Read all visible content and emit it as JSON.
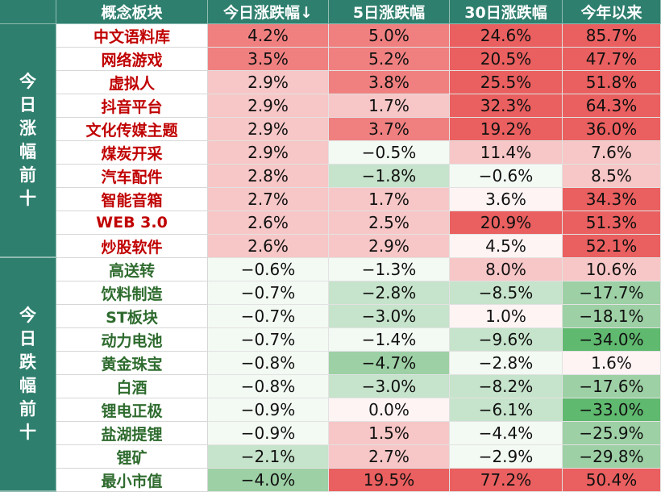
{
  "header": [
    "概念板块",
    "今日涨跌幅↓",
    "5日涨跌幅",
    "30日涨跌幅",
    "今年以来"
  ],
  "groups": [
    {
      "label": "今日涨幅前十",
      "chars": [
        "今",
        "日",
        "涨",
        "幅",
        "前",
        "十"
      ],
      "tone": "up",
      "rows": [
        {
          "name": "中文语料库",
          "values": [
            "4.2%",
            "5.0%",
            "24.6%",
            "85.7%"
          ]
        },
        {
          "name": "网络游戏",
          "values": [
            "3.5%",
            "5.2%",
            "20.5%",
            "47.7%"
          ]
        },
        {
          "name": "虚拟人",
          "values": [
            "2.9%",
            "3.8%",
            "25.5%",
            "51.8%"
          ]
        },
        {
          "name": "抖音平台",
          "values": [
            "2.9%",
            "1.7%",
            "32.3%",
            "64.3%"
          ]
        },
        {
          "name": "文化传媒主题",
          "values": [
            "2.9%",
            "3.7%",
            "19.2%",
            "36.0%"
          ]
        },
        {
          "name": "煤炭开采",
          "values": [
            "2.9%",
            "−0.5%",
            "11.4%",
            "7.6%"
          ]
        },
        {
          "name": "汽车配件",
          "values": [
            "2.8%",
            "−1.8%",
            "−0.6%",
            "8.5%"
          ]
        },
        {
          "name": "智能音箱",
          "values": [
            "2.7%",
            "1.7%",
            "3.6%",
            "34.3%"
          ]
        },
        {
          "name": "WEB 3.0",
          "values": [
            "2.6%",
            "2.5%",
            "20.9%",
            "51.3%"
          ]
        },
        {
          "name": "炒股软件",
          "values": [
            "2.6%",
            "2.9%",
            "4.5%",
            "52.1%"
          ]
        }
      ]
    },
    {
      "label": "今日跌幅前十",
      "chars": [
        "今",
        "日",
        "跌",
        "幅",
        "前",
        "十"
      ],
      "tone": "down",
      "rows": [
        {
          "name": "高送转",
          "values": [
            "−0.6%",
            "−1.3%",
            "8.0%",
            "10.6%"
          ]
        },
        {
          "name": "饮料制造",
          "values": [
            "−0.7%",
            "−2.8%",
            "−8.5%",
            "−17.7%"
          ]
        },
        {
          "name": "ST板块",
          "values": [
            "−0.7%",
            "−3.0%",
            "1.0%",
            "−18.1%"
          ]
        },
        {
          "name": "动力电池",
          "values": [
            "−0.7%",
            "−1.4%",
            "−9.6%",
            "−34.0%"
          ]
        },
        {
          "name": "黄金珠宝",
          "values": [
            "−0.8%",
            "−4.7%",
            "−2.8%",
            "1.6%"
          ]
        },
        {
          "name": "白酒",
          "values": [
            "−0.8%",
            "−3.0%",
            "−8.2%",
            "−17.6%"
          ]
        },
        {
          "name": "锂电正极",
          "values": [
            "−0.9%",
            "0.0%",
            "−6.1%",
            "−33.0%"
          ]
        },
        {
          "name": "盐湖提锂",
          "values": [
            "−0.9%",
            "1.5%",
            "−4.4%",
            "−25.9%"
          ]
        },
        {
          "name": "锂矿",
          "values": [
            "−2.1%",
            "2.7%",
            "−2.9%",
            "−29.8%"
          ]
        },
        {
          "name": "最小市值",
          "values": [
            "−4.0%",
            "19.5%",
            "77.2%",
            "50.4%"
          ]
        }
      ]
    }
  ],
  "colors": {
    "header_bg": "#2f7f6e",
    "header_text": "#ffffff",
    "up_name": "#c00000",
    "down_name": "#2e6b2e",
    "red_scale": [
      "#fff4f4",
      "#f7c6c6",
      "#f08080",
      "#ea5f5f"
    ],
    "green_scale": [
      "#f3f9f3",
      "#c6e3cb",
      "#9dd0a5",
      "#5fb96f"
    ]
  },
  "chart_data": {
    "type": "table",
    "columns": [
      "概念板块",
      "今日涨跌幅↓",
      "5日涨跌幅",
      "30日涨跌幅",
      "今年以来"
    ],
    "row_groups": [
      "今日涨幅前十",
      "今日跌幅前十"
    ],
    "rows": [
      [
        "中文语料库",
        4.2,
        5.0,
        24.6,
        85.7
      ],
      [
        "网络游戏",
        3.5,
        5.2,
        20.5,
        47.7
      ],
      [
        "虚拟人",
        2.9,
        3.8,
        25.5,
        51.8
      ],
      [
        "抖音平台",
        2.9,
        1.7,
        32.3,
        64.3
      ],
      [
        "文化传媒主题",
        2.9,
        3.7,
        19.2,
        36.0
      ],
      [
        "煤炭开采",
        2.9,
        -0.5,
        11.4,
        7.6
      ],
      [
        "汽车配件",
        2.8,
        -1.8,
        -0.6,
        8.5
      ],
      [
        "智能音箱",
        2.7,
        1.7,
        3.6,
        34.3
      ],
      [
        "WEB 3.0",
        2.6,
        2.5,
        20.9,
        51.3
      ],
      [
        "炒股软件",
        2.6,
        2.9,
        4.5,
        52.1
      ],
      [
        "高送转",
        -0.6,
        -1.3,
        8.0,
        10.6
      ],
      [
        "饮料制造",
        -0.7,
        -2.8,
        -8.5,
        -17.7
      ],
      [
        "ST板块",
        -0.7,
        -3.0,
        1.0,
        -18.1
      ],
      [
        "动力电池",
        -0.7,
        -1.4,
        -9.6,
        -34.0
      ],
      [
        "黄金珠宝",
        -0.8,
        -4.7,
        -2.8,
        1.6
      ],
      [
        "白酒",
        -0.8,
        -3.0,
        -8.2,
        -17.6
      ],
      [
        "锂电正极",
        -0.9,
        0.0,
        -6.1,
        -33.0
      ],
      [
        "盐湖提锂",
        -0.9,
        1.5,
        -4.4,
        -25.9
      ],
      [
        "锂矿",
        -2.1,
        2.7,
        -2.9,
        -29.8
      ],
      [
        "最小市值",
        -4.0,
        19.5,
        77.2,
        50.4
      ]
    ]
  }
}
